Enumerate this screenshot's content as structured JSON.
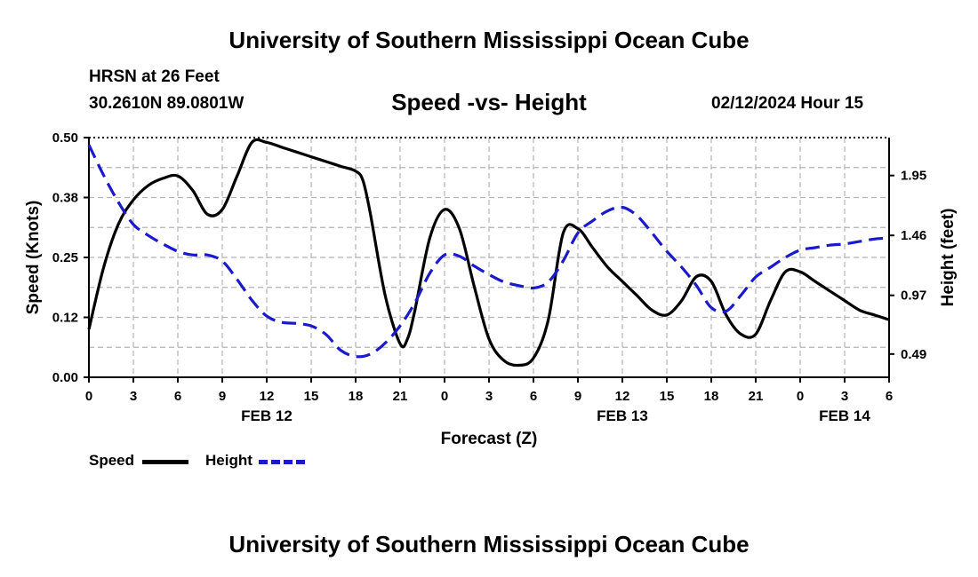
{
  "header": {
    "title": "University of Southern Mississippi Ocean Cube",
    "station": "HRSN at 26 Feet",
    "coords": "30.2610N  89.0801W",
    "subtitle": "Speed -vs- Height",
    "datetime": "02/12/2024 Hour 15"
  },
  "footer": {
    "title": "University of Southern Mississippi Ocean Cube"
  },
  "colors": {
    "speed": "#000000",
    "height": "#1a1acc",
    "grid": "#b4b4b4"
  },
  "chart_data": {
    "type": "line",
    "title": "Speed -vs- Height",
    "xlabel": "Forecast (Z)",
    "ylabel": "Speed (Knots)",
    "ylabel_right": "Height (feet)",
    "x_hours_range": [
      0,
      54
    ],
    "x_ticks": [
      {
        "h": 0,
        "label": "0"
      },
      {
        "h": 3,
        "label": "3"
      },
      {
        "h": 6,
        "label": "6"
      },
      {
        "h": 9,
        "label": "9"
      },
      {
        "h": 12,
        "label": "12"
      },
      {
        "h": 15,
        "label": "15"
      },
      {
        "h": 18,
        "label": "18"
      },
      {
        "h": 21,
        "label": "21"
      },
      {
        "h": 24,
        "label": "0"
      },
      {
        "h": 27,
        "label": "3"
      },
      {
        "h": 30,
        "label": "6"
      },
      {
        "h": 33,
        "label": "9"
      },
      {
        "h": 36,
        "label": "12"
      },
      {
        "h": 39,
        "label": "15"
      },
      {
        "h": 42,
        "label": "18"
      },
      {
        "h": 45,
        "label": "21"
      },
      {
        "h": 48,
        "label": "0"
      },
      {
        "h": 51,
        "label": "3"
      },
      {
        "h": 54,
        "label": "6"
      }
    ],
    "date_labels": [
      {
        "h": 12,
        "label": "FEB 12"
      },
      {
        "h": 36,
        "label": "FEB 13"
      },
      {
        "h": 51,
        "label": "FEB 14"
      }
    ],
    "y_left": {
      "range": [
        0,
        0.5
      ],
      "ticks": [
        "0.00",
        "0.12",
        "0.25",
        "0.38",
        "0.50"
      ],
      "tick_values": [
        0,
        0.125,
        0.25,
        0.375,
        0.5
      ]
    },
    "y_right": {
      "range": [
        0.3,
        2.26
      ],
      "ticks": [
        "0.49",
        "0.97",
        "1.46",
        "1.95"
      ],
      "tick_values": [
        0.49,
        0.97,
        1.46,
        1.95
      ]
    },
    "series": [
      {
        "name": "Speed",
        "axis": "left",
        "x": [
          0,
          1,
          2,
          3,
          4,
          5,
          6,
          7,
          8,
          9,
          10,
          11,
          12,
          13,
          14,
          15,
          16,
          17,
          18,
          18.5,
          19,
          20,
          21,
          21.5,
          22,
          23,
          24,
          25,
          26,
          27,
          28,
          29,
          30,
          31,
          32,
          33,
          34,
          35,
          36,
          37,
          38,
          39,
          40,
          41,
          42,
          43,
          44,
          45,
          46,
          47,
          48,
          49,
          50,
          51,
          52,
          53,
          54
        ],
        "values": [
          0.1,
          0.23,
          0.32,
          0.37,
          0.4,
          0.415,
          0.42,
          0.39,
          0.34,
          0.35,
          0.42,
          0.49,
          0.49,
          0.48,
          0.47,
          0.46,
          0.45,
          0.44,
          0.43,
          0.41,
          0.34,
          0.17,
          0.07,
          0.08,
          0.14,
          0.29,
          0.35,
          0.31,
          0.19,
          0.08,
          0.035,
          0.025,
          0.04,
          0.12,
          0.3,
          0.31,
          0.27,
          0.23,
          0.2,
          0.17,
          0.14,
          0.13,
          0.16,
          0.21,
          0.2,
          0.13,
          0.09,
          0.09,
          0.16,
          0.22,
          0.22,
          0.2,
          0.18,
          0.16,
          0.14,
          0.13,
          0.12
        ]
      },
      {
        "name": "Height",
        "axis": "right",
        "x": [
          0,
          1,
          2,
          3,
          4,
          5,
          6,
          7,
          8,
          9,
          10,
          11,
          12,
          13,
          14,
          15,
          16,
          17,
          18,
          19,
          20,
          21,
          22,
          23,
          24,
          25,
          26,
          27,
          28,
          29,
          30,
          31,
          32,
          33,
          34,
          35,
          36,
          37,
          38,
          39,
          40,
          41,
          42,
          43,
          44,
          45,
          46,
          47,
          48,
          49,
          50,
          51,
          52,
          53,
          54
        ],
        "values": [
          2.2,
          1.95,
          1.73,
          1.55,
          1.46,
          1.39,
          1.33,
          1.3,
          1.3,
          1.25,
          1.1,
          0.93,
          0.8,
          0.75,
          0.74,
          0.72,
          0.65,
          0.52,
          0.47,
          0.49,
          0.58,
          0.72,
          0.91,
          1.15,
          1.3,
          1.29,
          1.21,
          1.14,
          1.08,
          1.05,
          1.03,
          1.08,
          1.25,
          1.48,
          1.58,
          1.66,
          1.69,
          1.62,
          1.48,
          1.33,
          1.2,
          1.05,
          0.87,
          0.84,
          0.97,
          1.12,
          1.2,
          1.28,
          1.34,
          1.36,
          1.38,
          1.39,
          1.41,
          1.43,
          1.44
        ]
      }
    ],
    "legend": [
      {
        "name": "Speed",
        "label": "Speed"
      },
      {
        "name": "Height",
        "label": "Height"
      }
    ]
  }
}
